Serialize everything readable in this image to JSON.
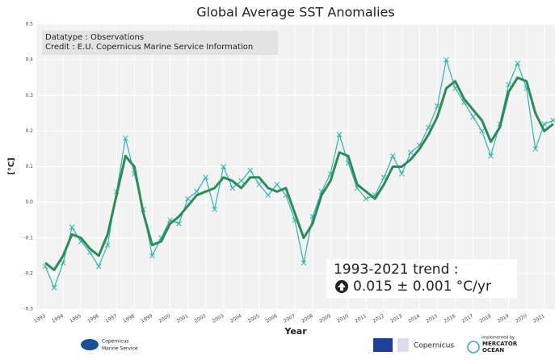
{
  "chart_data": {
    "type": "line",
    "title": "Global Average SST Anomalies",
    "xlabel": "Year",
    "ylabel": "[°C]",
    "annotations": [
      "Datatype : Observations",
      "Credit : E.U. Copernicus Marine Service Information"
    ],
    "trend_title": "1993-2021 trend :",
    "trend_text": "0.015 ± 0.001 °C/yr",
    "x": [
      1993.0,
      1993.5,
      1994.0,
      1994.5,
      1995.0,
      1995.5,
      1996.0,
      1996.5,
      1997.0,
      1997.5,
      1998.0,
      1998.5,
      1999.0,
      1999.5,
      2000.0,
      2000.5,
      2001.0,
      2001.5,
      2002.0,
      2002.5,
      2003.0,
      2003.5,
      2004.0,
      2004.5,
      2005.0,
      2005.5,
      2006.0,
      2006.5,
      2007.0,
      2007.5,
      2008.0,
      2008.5,
      2009.0,
      2009.5,
      2010.0,
      2010.5,
      2011.0,
      2011.5,
      2012.0,
      2012.5,
      2013.0,
      2013.5,
      2014.0,
      2014.5,
      2015.0,
      2015.5,
      2016.0,
      2016.5,
      2017.0,
      2017.5,
      2018.0,
      2018.5,
      2019.0,
      2019.5,
      2020.0,
      2020.5,
      2021.0,
      2021.5
    ],
    "series": [
      {
        "color": "#2bb5b0",
        "marker": "x",
        "values": [
          -0.18,
          -0.24,
          -0.17,
          -0.07,
          -0.11,
          -0.14,
          -0.18,
          -0.12,
          0.03,
          0.18,
          0.08,
          -0.02,
          -0.15,
          -0.1,
          -0.05,
          -0.06,
          0.01,
          0.03,
          0.07,
          -0.02,
          0.1,
          0.04,
          0.06,
          0.09,
          0.05,
          0.02,
          0.05,
          0.02,
          -0.05,
          -0.17,
          -0.04,
          0.03,
          0.08,
          0.19,
          0.11,
          0.04,
          0.01,
          0.02,
          0.07,
          0.13,
          0.08,
          0.14,
          0.16,
          0.21,
          0.27,
          0.4,
          0.32,
          0.28,
          0.24,
          0.2,
          0.13,
          0.22,
          0.33,
          0.39,
          0.32,
          0.15,
          0.22,
          0.23
        ]
      },
      {
        "color": "#2e8b57",
        "values": [
          -0.17,
          -0.19,
          -0.15,
          -0.09,
          -0.1,
          -0.13,
          -0.15,
          -0.09,
          0.02,
          0.13,
          0.1,
          -0.03,
          -0.12,
          -0.11,
          -0.06,
          -0.04,
          -0.01,
          0.02,
          0.03,
          0.04,
          0.07,
          0.06,
          0.04,
          0.07,
          0.07,
          0.04,
          0.03,
          0.04,
          -0.03,
          -0.1,
          -0.06,
          0.02,
          0.06,
          0.14,
          0.13,
          0.05,
          0.03,
          0.01,
          0.05,
          0.1,
          0.1,
          0.12,
          0.15,
          0.19,
          0.24,
          0.32,
          0.34,
          0.29,
          0.26,
          0.23,
          0.17,
          0.21,
          0.31,
          0.35,
          0.34,
          0.25,
          0.2,
          0.22
        ]
      }
    ],
    "xlim": [
      1992.5,
      2021.6
    ],
    "xticks": [
      1993,
      1994,
      1995,
      1996,
      1997,
      1998,
      1999,
      2000,
      2001,
      2002,
      2003,
      2004,
      2005,
      2006,
      2007,
      2008,
      2009,
      2010,
      2011,
      2012,
      2013,
      2014,
      2015,
      2016,
      2017,
      2018,
      2019,
      2020,
      2021
    ],
    "ylim": [
      -0.3,
      0.5
    ],
    "yticks": [
      -0.3,
      -0.2,
      -0.1,
      {
        "value": 0,
        "label": "0.0"
      },
      0.1,
      0.2,
      0.3,
      0.4,
      0.5
    ],
    "grid": true
  },
  "footer": {
    "left": [
      "Copernicus",
      "Marine Service"
    ],
    "middle": "Copernicus",
    "right_caption": "implemented by",
    "right": [
      "MERCATOR",
      "OCEAN"
    ]
  }
}
